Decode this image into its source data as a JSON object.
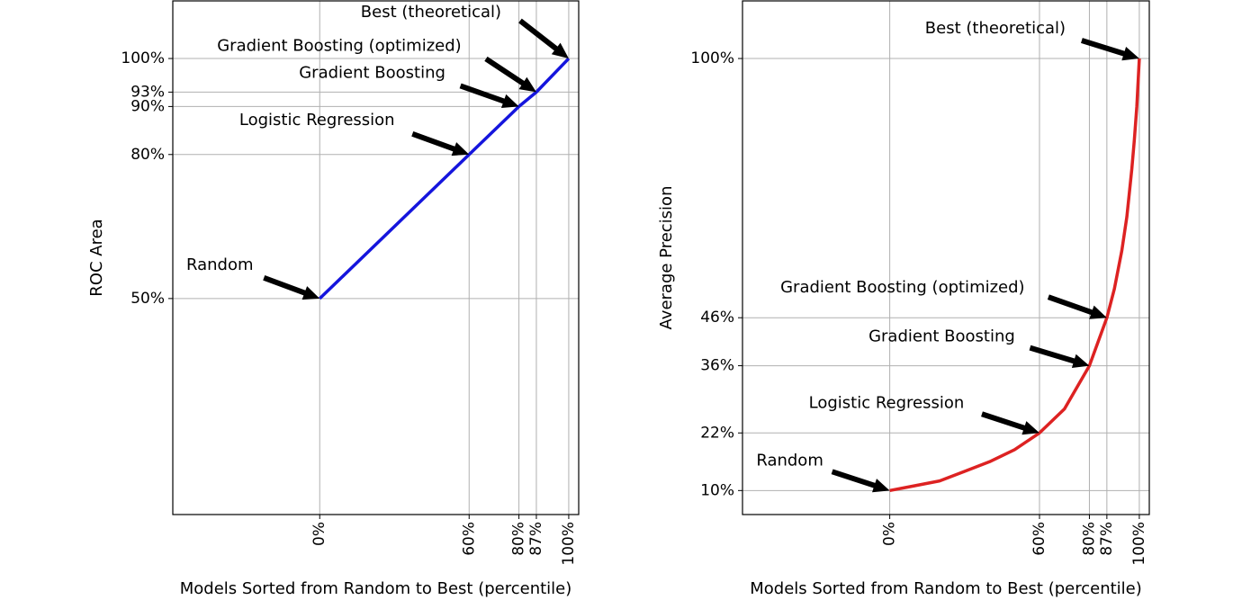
{
  "chart_data": [
    {
      "type": "line",
      "ylabel": "ROC Area",
      "xlabel": "Models Sorted from Random to Best (percentile)",
      "xlim": [
        -59,
        104
      ],
      "ylim": [
        5,
        112
      ],
      "grid": true,
      "xticks": [
        {
          "value": 0,
          "label": "0%"
        },
        {
          "value": 60,
          "label": "60%"
        },
        {
          "value": 80,
          "label": "80%"
        },
        {
          "value": 87,
          "label": "87%"
        },
        {
          "value": 100,
          "label": "100%"
        }
      ],
      "yticks": [
        {
          "value": 50,
          "label": "50%"
        },
        {
          "value": 80,
          "label": "80%"
        },
        {
          "value": 90,
          "label": "90%"
        },
        {
          "value": 93,
          "label": "93%"
        },
        {
          "value": 100,
          "label": "100%"
        }
      ],
      "x": [
        0,
        60,
        80,
        87,
        100
      ],
      "series": [
        {
          "color": "#1515dd",
          "values": [
            50,
            80,
            90,
            93,
            100
          ]
        }
      ],
      "annotations": [
        {
          "text": "Random",
          "x": 0,
          "y": 50
        },
        {
          "text": "Logistic Regression",
          "x": 60,
          "y": 80
        },
        {
          "text": "Gradient Boosting",
          "x": 80,
          "y": 90
        },
        {
          "text": "Gradient Boosting (optimized)",
          "x": 87,
          "y": 93
        },
        {
          "text": "Best (theoretical)",
          "x": 100,
          "y": 100
        }
      ]
    },
    {
      "type": "line",
      "ylabel": "Average Precision",
      "xlabel": "Models Sorted from Random to Best (percentile)",
      "xlim": [
        -59,
        104
      ],
      "ylim": [
        5,
        112
      ],
      "grid": true,
      "xticks": [
        {
          "value": 0,
          "label": "0%"
        },
        {
          "value": 60,
          "label": "60%"
        },
        {
          "value": 80,
          "label": "80%"
        },
        {
          "value": 87,
          "label": "87%"
        },
        {
          "value": 100,
          "label": "100%"
        }
      ],
      "yticks": [
        {
          "value": 10,
          "label": "10%"
        },
        {
          "value": 22,
          "label": "22%"
        },
        {
          "value": 36,
          "label": "36%"
        },
        {
          "value": 46,
          "label": "46%"
        },
        {
          "value": 100,
          "label": "100%"
        }
      ],
      "x": [
        0,
        10,
        20,
        30,
        40,
        50,
        60,
        70,
        80,
        87,
        90,
        93,
        95,
        97,
        98,
        99,
        100
      ],
      "series": [
        {
          "color": "#dd2222",
          "values": [
            10,
            11,
            12,
            14,
            16,
            18.5,
            22,
            27,
            36,
            46,
            52,
            60,
            67,
            77,
            83,
            90,
            100
          ]
        }
      ],
      "annotations": [
        {
          "text": "Random",
          "x": 0,
          "y": 10
        },
        {
          "text": "Logistic Regression",
          "x": 60,
          "y": 22
        },
        {
          "text": "Gradient Boosting",
          "x": 80,
          "y": 36
        },
        {
          "text": "Gradient Boosting (optimized)",
          "x": 87,
          "y": 46
        },
        {
          "text": "Best (theoretical)",
          "x": 100,
          "y": 100
        }
      ]
    }
  ]
}
